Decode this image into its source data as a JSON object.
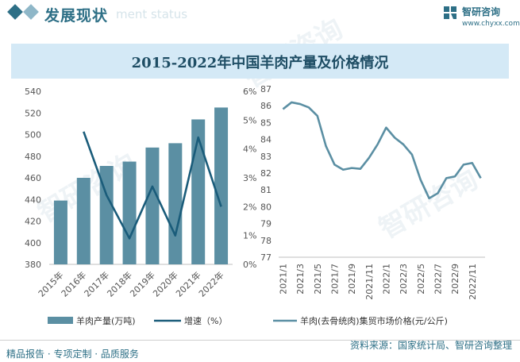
{
  "header": {
    "title": "发展现状",
    "subtitle": "ment status"
  },
  "brand": {
    "name": "智研咨询",
    "url": "www.chyxx.com",
    "watermark": "智研咨询"
  },
  "colors": {
    "accent": "#2d6f86",
    "bar": "#5b8fa3",
    "line_dark": "#1a5c7a",
    "line_light": "#5b8fa3",
    "title_band": "#d4e9f6"
  },
  "chart_data": [
    {
      "type": "bar",
      "title": "2015-2022年中国羊肉产量及价格情况",
      "categories": [
        "2015年",
        "2016年",
        "2017年",
        "2018年",
        "2019年",
        "2020年",
        "2021年",
        "2022年"
      ],
      "series": [
        {
          "name": "羊肉产量(万吨)",
          "type": "bar",
          "axis": "left",
          "values": [
            439,
            460,
            471,
            475,
            488,
            492,
            514,
            525
          ]
        },
        {
          "name": "增速（%）",
          "type": "line",
          "axis": "right",
          "values": [
            null,
            4.6,
            2.4,
            0.9,
            2.7,
            1.0,
            4.4,
            2.0
          ]
        }
      ],
      "y_left": {
        "min": 380,
        "max": 540,
        "step": 20,
        "ticks": [
          "380",
          "400",
          "420",
          "440",
          "460",
          "480",
          "500",
          "520",
          "540"
        ]
      },
      "y_right": {
        "min": 0,
        "max": 6,
        "step": 1,
        "ticks": [
          "0%",
          "1%",
          "2%",
          "3%",
          "4%",
          "5%",
          "6%"
        ]
      },
      "legend_position": "bottom",
      "grid": false
    },
    {
      "type": "line",
      "x": [
        "2021/1",
        "2021/2",
        "2021/3",
        "2021/4",
        "2021/5",
        "2021/6",
        "2021/7",
        "2021/8",
        "2021/9",
        "2021/10",
        "2021/11",
        "2021/12",
        "2022/1",
        "2022/2",
        "2022/3",
        "2022/4",
        "2022/5",
        "2022/6",
        "2022/7",
        "2022/8",
        "2022/9",
        "2022/10",
        "2022/11",
        "2022/12"
      ],
      "x_tick_labels": [
        "2021/1",
        "2021/3",
        "2021/5",
        "2021/7",
        "2021/9",
        "2021/11",
        "2022/1",
        "2022/3",
        "2022/5",
        "2022/7",
        "2022/9",
        "2022/11"
      ],
      "series": [
        {
          "name": "羊肉(去骨统肉)集贸市场价格(元/公斤)",
          "values": [
            85.8,
            86.2,
            86.1,
            85.9,
            85.4,
            83.6,
            82.5,
            82.2,
            82.3,
            82.25,
            82.9,
            83.7,
            84.7,
            84.1,
            83.7,
            83.1,
            81.6,
            80.5,
            80.8,
            81.7,
            81.8,
            82.5,
            82.6,
            81.7
          ]
        }
      ],
      "y": {
        "min": 77,
        "max": 87,
        "step": 1,
        "ticks": [
          "77",
          "78",
          "79",
          "80",
          "81",
          "82",
          "83",
          "84",
          "85",
          "86",
          "87"
        ]
      },
      "legend_position": "bottom",
      "grid": false
    }
  ],
  "footer": {
    "left": "精品报告 · 专项定制 · 品质服务",
    "right": "资料来源：国家统计局、智研咨询整理"
  }
}
